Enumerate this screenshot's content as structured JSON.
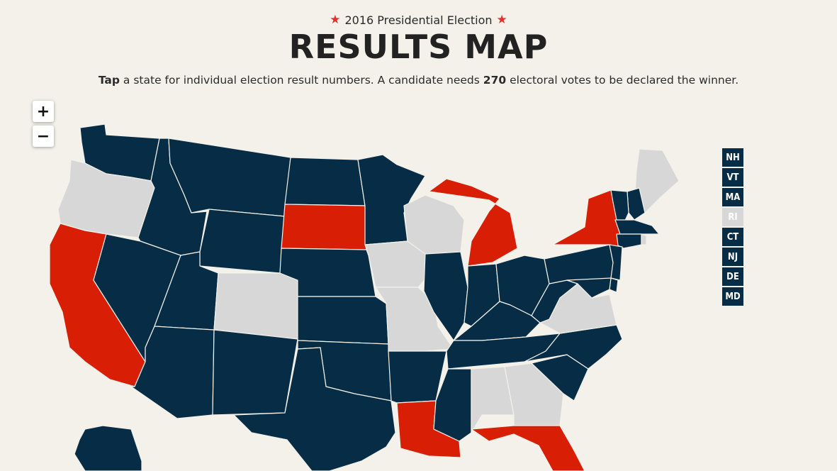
{
  "header": {
    "kicker": "2016 Presidential Election",
    "title": "RESULTS MAP"
  },
  "intro": {
    "tap": "Tap",
    "text1": " a state for individual election result numbers. A candidate needs ",
    "votes": "270",
    "text2": " electoral votes to be declared the winner."
  },
  "controls": {
    "zoom_in": "+",
    "zoom_out": "−"
  },
  "colors": {
    "blue": "#062c46",
    "red": "#d91e06",
    "gray": "#d7d7d7",
    "star": "#e0312c"
  },
  "states": {
    "WA": "blue",
    "OR": "gray",
    "CA": "red",
    "ID": "blue",
    "NV": "blue",
    "MT": "blue",
    "WY": "blue",
    "UT": "blue",
    "AZ": "blue",
    "CO": "gray",
    "NM": "blue",
    "ND": "blue",
    "SD": "red",
    "NE": "blue",
    "KS": "blue",
    "OK": "blue",
    "TX": "blue",
    "MN": "blue",
    "IA": "gray",
    "MO": "gray",
    "AR": "blue",
    "LA": "red",
    "WI": "gray",
    "IL": "blue",
    "MI": "red",
    "IN": "blue",
    "OH": "blue",
    "KY": "blue",
    "TN": "blue",
    "MS": "blue",
    "AL": "gray",
    "GA": "gray",
    "FL": "red",
    "SC": "blue",
    "NC": "blue",
    "VA": "gray",
    "WV": "blue",
    "PA": "blue",
    "NY": "red",
    "ME": "gray",
    "AK": "blue"
  },
  "small_states": [
    {
      "label": "NH",
      "status": "blue"
    },
    {
      "label": "VT",
      "status": "blue"
    },
    {
      "label": "MA",
      "status": "blue"
    },
    {
      "label": "RI",
      "status": "gray"
    },
    {
      "label": "CT",
      "status": "blue"
    },
    {
      "label": "NJ",
      "status": "blue"
    },
    {
      "label": "DE",
      "status": "blue"
    },
    {
      "label": "MD",
      "status": "blue"
    }
  ]
}
